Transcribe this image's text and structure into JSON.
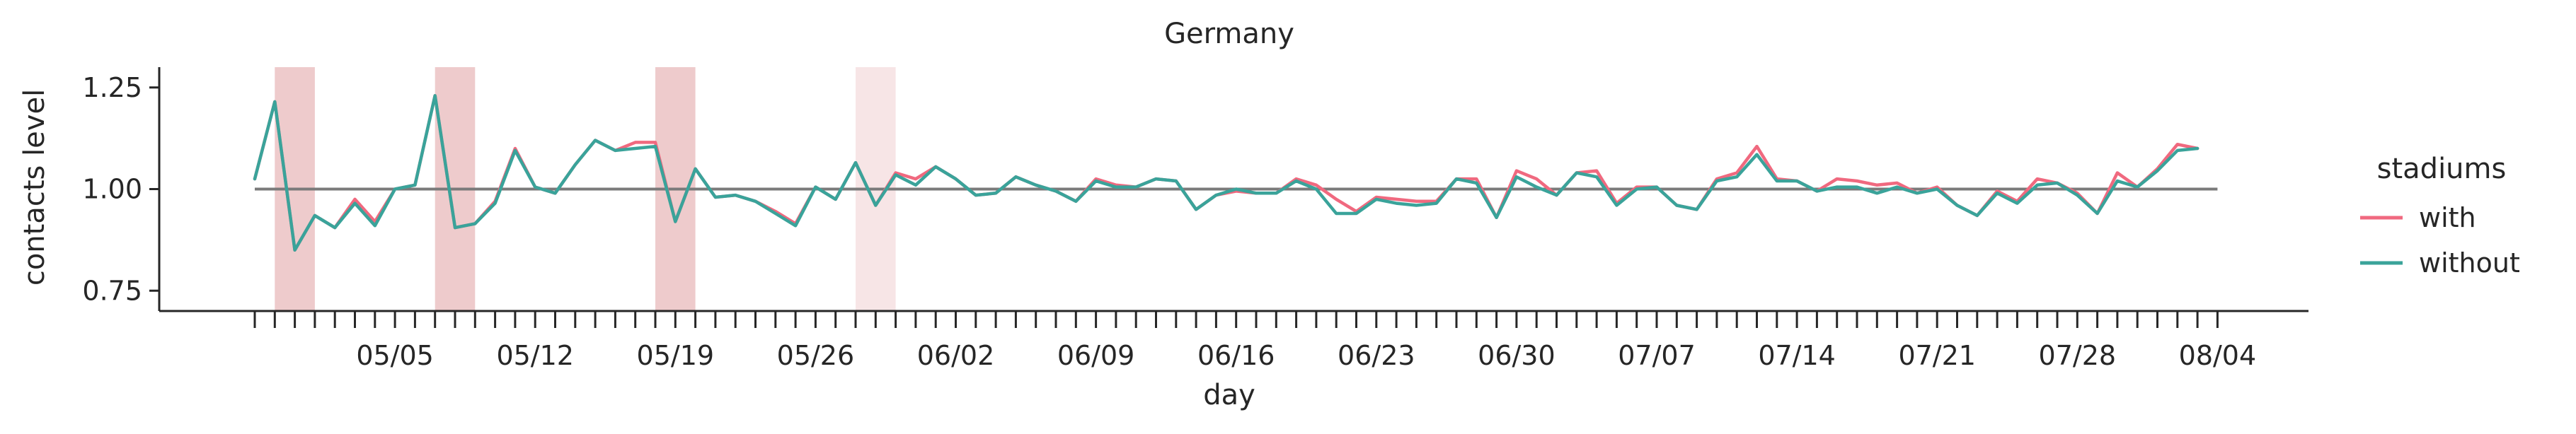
{
  "chart_data": {
    "type": "line",
    "title": "Germany",
    "xlabel": "day",
    "ylabel": "contacts level",
    "ylim": [
      0.7,
      1.3
    ],
    "yticks": [
      0.75,
      1.0,
      1.25
    ],
    "ytick_labels": [
      "0.75",
      "1.00",
      "1.25"
    ],
    "x_start": "2021-04-28",
    "x_end": "2021-08-04",
    "xtick_labels": [
      "05/05",
      "05/12",
      "05/19",
      "05/26",
      "06/02",
      "06/09",
      "06/16",
      "06/23",
      "06/30",
      "07/07",
      "07/14",
      "07/21",
      "07/28",
      "08/04"
    ],
    "xtick_dates": [
      "2021-05-05",
      "2021-05-12",
      "2021-05-19",
      "2021-05-26",
      "2021-06-02",
      "2021-06-09",
      "2021-06-16",
      "2021-06-23",
      "2021-06-30",
      "2021-07-07",
      "2021-07-14",
      "2021-07-21",
      "2021-07-28",
      "2021-08-04"
    ],
    "reference_line": 1.0,
    "highlight_spans": [
      {
        "start": "2021-04-29",
        "end": "2021-05-01",
        "color": "#d98b8f",
        "opacity": 0.45
      },
      {
        "start": "2021-05-07",
        "end": "2021-05-09",
        "color": "#d98b8f",
        "opacity": 0.45
      },
      {
        "start": "2021-05-18",
        "end": "2021-05-20",
        "color": "#d98b8f",
        "opacity": 0.45
      },
      {
        "start": "2021-05-28",
        "end": "2021-05-30",
        "color": "#e8b4b6",
        "opacity": 0.35
      }
    ],
    "legend": {
      "title": "stadiums",
      "placement": "right"
    },
    "series": [
      {
        "name": "with",
        "color": "#f0697f",
        "values": [
          1.025,
          1.215,
          0.85,
          0.935,
          0.905,
          0.975,
          0.92,
          1.0,
          1.01,
          1.23,
          0.905,
          0.915,
          0.97,
          1.1,
          1.005,
          0.99,
          1.06,
          1.12,
          1.095,
          1.115,
          1.115,
          0.92,
          1.05,
          0.98,
          0.985,
          0.97,
          0.945,
          0.915,
          1.005,
          0.975,
          1.065,
          0.96,
          1.04,
          1.025,
          1.055,
          1.025,
          0.985,
          0.99,
          1.03,
          1.01,
          0.995,
          0.97,
          1.025,
          1.01,
          1.005,
          1.025,
          1.02,
          0.95,
          0.985,
          0.995,
          0.99,
          0.99,
          1.025,
          1.01,
          0.975,
          0.945,
          0.98,
          0.975,
          0.97,
          0.97,
          1.025,
          1.025,
          0.93,
          1.045,
          1.025,
          0.985,
          1.04,
          1.045,
          0.965,
          1.005,
          1.005,
          0.96,
          0.95,
          1.025,
          1.04,
          1.105,
          1.025,
          1.02,
          0.995,
          1.025,
          1.02,
          1.01,
          1.015,
          0.99,
          1.005,
          0.96,
          0.935,
          0.995,
          0.97,
          1.025,
          1.015,
          0.99,
          0.94,
          1.04,
          1.005,
          1.05,
          1.11,
          1.1
        ]
      },
      {
        "name": "without",
        "color": "#3aa39a",
        "values": [
          1.025,
          1.215,
          0.85,
          0.935,
          0.905,
          0.965,
          0.91,
          1.0,
          1.01,
          1.23,
          0.905,
          0.915,
          0.965,
          1.095,
          1.005,
          0.99,
          1.06,
          1.12,
          1.095,
          1.1,
          1.105,
          0.92,
          1.05,
          0.98,
          0.985,
          0.97,
          0.94,
          0.91,
          1.005,
          0.975,
          1.065,
          0.96,
          1.035,
          1.01,
          1.055,
          1.025,
          0.985,
          0.99,
          1.03,
          1.01,
          0.995,
          0.97,
          1.02,
          1.005,
          1.005,
          1.025,
          1.02,
          0.95,
          0.985,
          1.0,
          0.99,
          0.99,
          1.02,
          1.0,
          0.94,
          0.94,
          0.975,
          0.965,
          0.96,
          0.965,
          1.025,
          1.015,
          0.93,
          1.03,
          1.005,
          0.985,
          1.04,
          1.03,
          0.96,
          1.0,
          1.005,
          0.96,
          0.95,
          1.02,
          1.03,
          1.085,
          1.02,
          1.02,
          0.995,
          1.005,
          1.005,
          0.99,
          1.005,
          0.99,
          1.0,
          0.96,
          0.935,
          0.99,
          0.965,
          1.01,
          1.015,
          0.985,
          0.94,
          1.02,
          1.005,
          1.045,
          1.095,
          1.1
        ]
      }
    ]
  }
}
